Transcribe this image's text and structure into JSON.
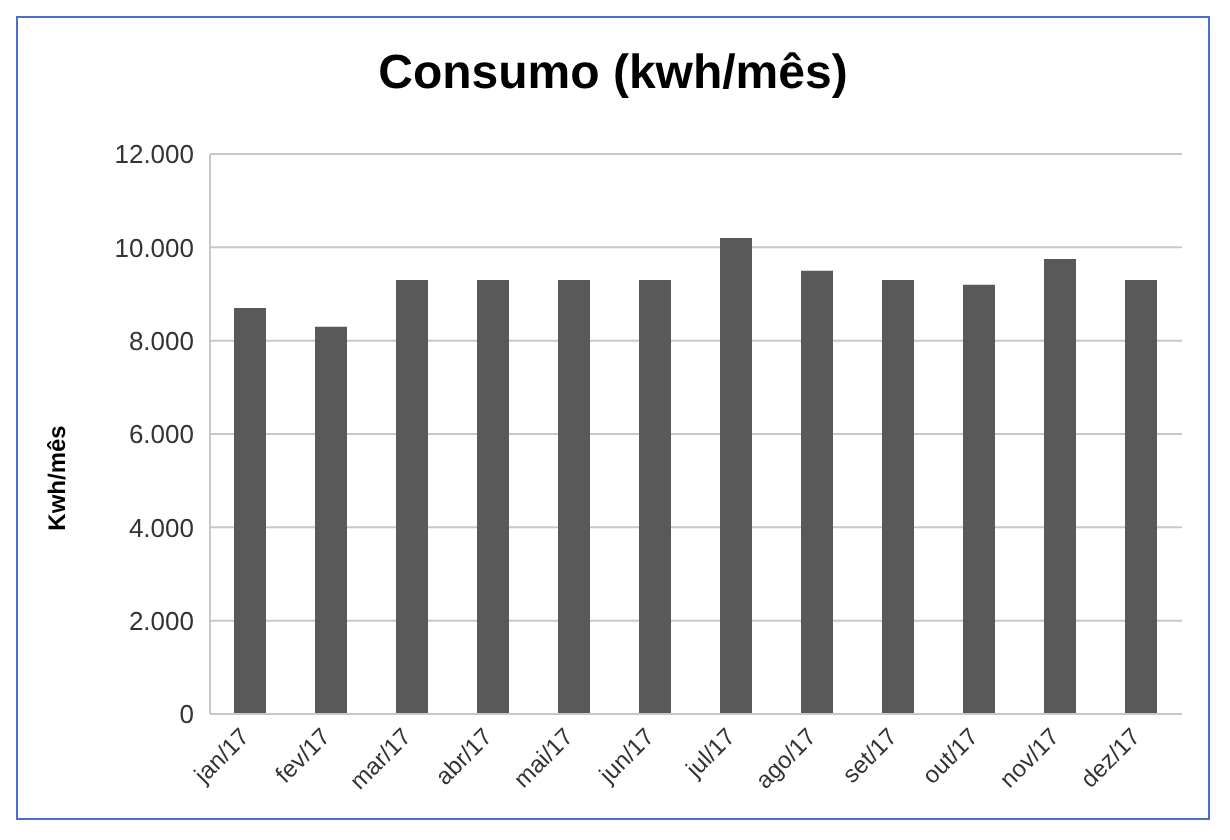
{
  "chart_data": {
    "type": "bar",
    "title": "Consumo (kwh/mês)",
    "ylabel": "Kwh/mês",
    "categories": [
      "jan/17",
      "fev/17",
      "mar/17",
      "abr/17",
      "mai/17",
      "jun/17",
      "jul/17",
      "ago/17",
      "set/17",
      "out/17",
      "nov/17",
      "dez/17"
    ],
    "values": [
      8700,
      8300,
      9300,
      9300,
      9300,
      9300,
      10200,
      9500,
      9300,
      9200,
      9750,
      9300
    ],
    "color": "#595959",
    "ylim": [
      0,
      12000
    ],
    "yticks": [
      {
        "value": 0,
        "label": "0"
      },
      {
        "value": 2000,
        "label": "2.000"
      },
      {
        "value": 4000,
        "label": "4.000"
      },
      {
        "value": 6000,
        "label": "6.000"
      },
      {
        "value": 8000,
        "label": "8.000"
      },
      {
        "value": 10000,
        "label": "10.000"
      },
      {
        "value": 12000,
        "label": "12.000"
      }
    ],
    "grid": "y"
  }
}
